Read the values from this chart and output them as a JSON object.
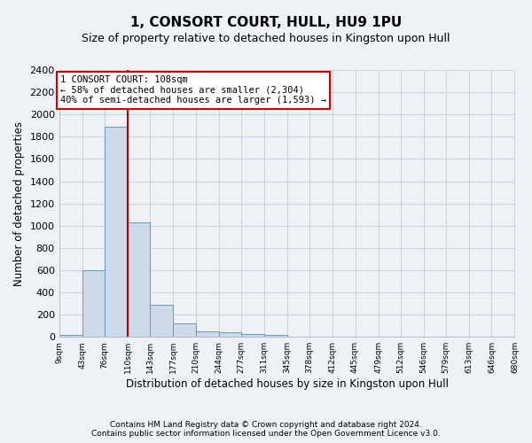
{
  "title": "1, CONSORT COURT, HULL, HU9 1PU",
  "subtitle": "Size of property relative to detached houses in Kingston upon Hull",
  "xlabel": "Distribution of detached houses by size in Kingston upon Hull",
  "ylabel": "Number of detached properties",
  "footer_line1": "Contains HM Land Registry data © Crown copyright and database right 2024.",
  "footer_line2": "Contains public sector information licensed under the Open Government Licence v3.0.",
  "bar_edges": [
    9,
    43,
    76,
    110,
    143,
    177,
    210,
    244,
    277,
    311,
    345,
    378,
    412,
    445,
    479,
    512,
    546,
    579,
    613,
    646,
    680
  ],
  "bar_heights": [
    20,
    600,
    1890,
    1030,
    290,
    120,
    50,
    40,
    25,
    20,
    0,
    0,
    0,
    0,
    0,
    0,
    0,
    0,
    0,
    0
  ],
  "bar_color": "#ccdaea",
  "bar_edge_color": "#6699bb",
  "grid_color": "#c8d4e0",
  "vline_x": 110,
  "vline_color": "#bb0000",
  "annotation_title": "1 CONSORT COURT: 108sqm",
  "annotation_line1": "← 58% of detached houses are smaller (2,304)",
  "annotation_line2": "40% of semi-detached houses are larger (1,593) →",
  "annotation_box_color": "#cc0000",
  "ylim": [
    0,
    2400
  ],
  "yticks": [
    0,
    200,
    400,
    600,
    800,
    1000,
    1200,
    1400,
    1600,
    1800,
    2000,
    2200,
    2400
  ],
  "bg_color": "#eef2f6",
  "plot_bg_color": "#eef2f6",
  "title_fontsize": 11,
  "subtitle_fontsize": 9,
  "footer_fontsize": 6.5
}
